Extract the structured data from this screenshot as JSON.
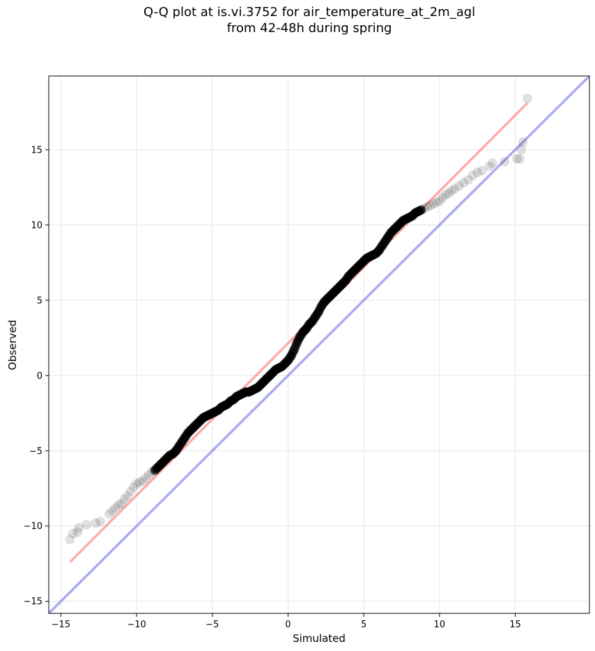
{
  "chart_data": {
    "type": "scatter",
    "title_line1": "Q-Q plot at is.vi.3752 for air_temperature_at_2m_agl",
    "title_line2": "from 42-48h during spring",
    "xlabel": "Simulated",
    "ylabel": "Observed",
    "xlim": [
      -15.8,
      19.9
    ],
    "ylim": [
      -15.8,
      19.9
    ],
    "xticks": [
      -15,
      -10,
      -5,
      0,
      5,
      10,
      15
    ],
    "yticks": [
      -15,
      -10,
      -5,
      0,
      5,
      10,
      15
    ],
    "xtick_labels": [
      "−15",
      "−10",
      "−5",
      "0",
      "5",
      "10",
      "15"
    ],
    "ytick_labels": [
      "−15",
      "−10",
      "−5",
      "0",
      "5",
      "10",
      "15"
    ],
    "grid": true,
    "colors": {
      "points": "#000000",
      "fit_line": "#ff4444",
      "identity_line": "#5555ee",
      "grid": "#e6e6e6"
    },
    "fit_line": {
      "x": [
        -14.4,
        15.8
      ],
      "y": [
        -12.4,
        18.1
      ]
    },
    "identity_line": {
      "x": [
        -15.8,
        19.9
      ],
      "y": [
        -15.8,
        19.9
      ]
    },
    "points": {
      "x": [
        -14.4,
        -14.2,
        -13.9,
        -13.8,
        -13.3,
        -12.7,
        -12.4,
        -11.8,
        -11.6,
        -11.4,
        -11.2,
        -11.0,
        -10.8,
        -10.6,
        -10.4,
        -10.2,
        -10.0,
        -9.8,
        -9.6,
        -9.4,
        -9.2,
        -9.0,
        -8.8,
        -8.6,
        -8.4,
        -8.2,
        -8.0,
        -7.8,
        -7.6,
        -7.4,
        -7.2,
        -7.0,
        -6.8,
        -6.6,
        -6.4,
        -6.2,
        -6.0,
        -5.8,
        -5.6,
        -5.4,
        -5.2,
        -5.0,
        -4.8,
        -4.6,
        -4.4,
        -4.2,
        -4.0,
        -3.8,
        -3.6,
        -3.4,
        -3.2,
        -3.0,
        -2.8,
        -2.6,
        -2.4,
        -2.2,
        -2.0,
        -1.8,
        -1.6,
        -1.4,
        -1.2,
        -1.0,
        -0.8,
        -0.6,
        -0.4,
        -0.2,
        0.0,
        0.2,
        0.4,
        0.6,
        0.8,
        1.0,
        1.2,
        1.4,
        1.6,
        1.8,
        2.0,
        2.2,
        2.4,
        2.6,
        2.8,
        3.0,
        3.2,
        3.4,
        3.6,
        3.8,
        4.0,
        4.2,
        4.4,
        4.6,
        4.8,
        5.0,
        5.2,
        5.4,
        5.6,
        5.8,
        6.0,
        6.2,
        6.4,
        6.6,
        6.8,
        7.0,
        7.2,
        7.4,
        7.6,
        7.8,
        8.0,
        8.2,
        8.4,
        8.6,
        8.8,
        9.0,
        9.2,
        9.4,
        9.6,
        9.8,
        10.0,
        10.2,
        10.4,
        10.6,
        10.8,
        11.0,
        11.3,
        11.6,
        11.9,
        12.2,
        12.5,
        12.8,
        13.3,
        13.5,
        14.3,
        15.1,
        15.3,
        15.4,
        15.5,
        15.8
      ],
      "y": [
        -10.9,
        -10.5,
        -10.4,
        -10.1,
        -9.9,
        -9.8,
        -9.7,
        -9.2,
        -9.0,
        -8.8,
        -8.6,
        -8.5,
        -8.2,
        -8.0,
        -7.7,
        -7.4,
        -7.2,
        -7.1,
        -7.0,
        -6.8,
        -6.6,
        -6.4,
        -6.3,
        -6.1,
        -5.9,
        -5.7,
        -5.5,
        -5.3,
        -5.2,
        -5.0,
        -4.7,
        -4.4,
        -4.1,
        -3.8,
        -3.6,
        -3.4,
        -3.2,
        -3.0,
        -2.8,
        -2.7,
        -2.6,
        -2.5,
        -2.4,
        -2.3,
        -2.1,
        -2.0,
        -1.9,
        -1.7,
        -1.6,
        -1.4,
        -1.3,
        -1.2,
        -1.1,
        -1.1,
        -1.0,
        -0.9,
        -0.8,
        -0.6,
        -0.4,
        -0.2,
        0.0,
        0.2,
        0.4,
        0.5,
        0.6,
        0.8,
        1.0,
        1.3,
        1.7,
        2.2,
        2.6,
        2.9,
        3.1,
        3.4,
        3.6,
        3.9,
        4.2,
        4.6,
        4.9,
        5.1,
        5.3,
        5.5,
        5.7,
        5.9,
        6.1,
        6.3,
        6.6,
        6.8,
        7.0,
        7.2,
        7.4,
        7.6,
        7.8,
        7.9,
        8.0,
        8.1,
        8.3,
        8.6,
        8.9,
        9.2,
        9.5,
        9.7,
        9.9,
        10.1,
        10.3,
        10.4,
        10.5,
        10.6,
        10.8,
        10.9,
        11.0,
        11.1,
        11.2,
        11.3,
        11.4,
        11.5,
        11.6,
        11.8,
        12.0,
        12.1,
        12.3,
        12.4,
        12.6,
        12.8,
        13.0,
        13.3,
        13.5,
        13.6,
        13.9,
        14.1,
        14.2,
        14.4,
        14.4,
        15.0,
        15.5,
        18.4
      ]
    }
  }
}
